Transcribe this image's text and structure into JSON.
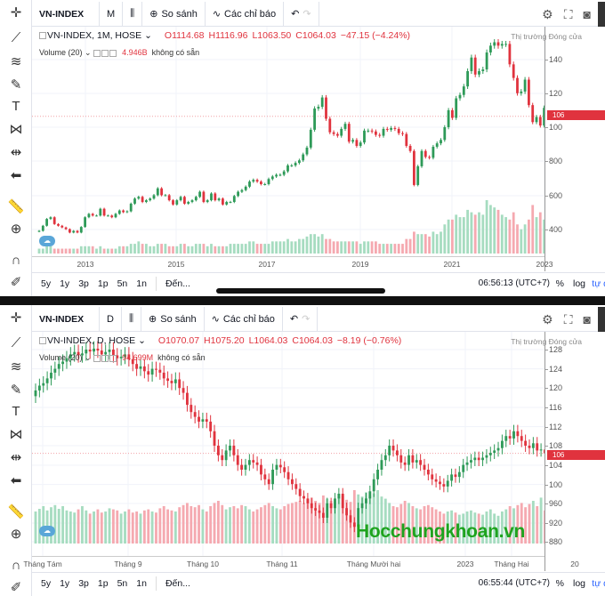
{
  "colors": {
    "up": "#2e9a58",
    "down": "#e0333e",
    "vol_up": "#a6dcc0",
    "vol_down": "#f5a9b0",
    "accent": "#2962ff",
    "watermark": "#1ea31e"
  },
  "toolbar_common": {
    "compare": "So sánh",
    "indicators": "Các chỉ báo",
    "tools": [
      "crosshair-icon",
      "trendline-icon",
      "fib-icon",
      "brush-icon",
      "text-icon",
      "pattern-icon",
      "measure-icon",
      "back-arrow-icon",
      "ruler-icon",
      "zoom-in-icon",
      "magnet-icon",
      "lock-drawing-icon"
    ]
  },
  "panels": [
    {
      "symbol": "VN-INDEX",
      "interval": "M",
      "legend": {
        "title": "VN-INDEX, 1M, HOSE",
        "open": "O1114.68",
        "high": "H1116.96",
        "low": "L1063.50",
        "close": "C1064.03",
        "change": "−47.15 (−4.24%)"
      },
      "volume_legend": {
        "label": "Volume (20)",
        "value": "4.946B",
        "na": "không có sẵn"
      },
      "status": "Thị trường Đóng cửa",
      "price_ticks": [
        "140",
        "120",
        "100",
        "800",
        "600",
        "400"
      ],
      "price_label": "106",
      "time_ticks": [
        "2013",
        "2015",
        "2017",
        "2019",
        "2021",
        "2023"
      ],
      "ranges": [
        "5y",
        "1y",
        "3p",
        "1p",
        "5n",
        "1n"
      ],
      "goto": "Đến...",
      "clock": "06:56:13 (UTC+7)",
      "pct": "%",
      "log": "log",
      "auto": "tự đ"
    },
    {
      "symbol": "VN-INDEX",
      "interval": "D",
      "legend": {
        "title": "VN-INDEX, D, HOSE",
        "open": "O1070.07",
        "high": "H1075.20",
        "low": "L1064.03",
        "close": "C1064.03",
        "change": "−8.19 (−0.76%)"
      },
      "volume_legend": {
        "label": "Volume (20)",
        "value": "94.699M",
        "na": "không có sẵn"
      },
      "status": "Thị trường Đóng cửa",
      "price_ticks": [
        "128",
        "124",
        "120",
        "116",
        "112",
        "108",
        "104",
        "100",
        "960",
        "920",
        "880"
      ],
      "price_label": "106",
      "time_ticks": [
        "Tháng Tám",
        "Tháng 9",
        "Tháng 10",
        "Tháng 11",
        "Tháng Mười hai",
        "2023",
        "Tháng Hai",
        "20"
      ],
      "ranges": [
        "5y",
        "1y",
        "3p",
        "1p",
        "5n",
        "1n"
      ],
      "goto": "Đến...",
      "clock": "06:55:44 (UTC+7)",
      "pct": "%",
      "log": "log",
      "auto": "tự đ"
    }
  ],
  "watermark": "Hocchungkhoan.vn",
  "chart_data": [
    {
      "type": "candlestick",
      "title": "VN-INDEX, 1M, HOSE",
      "x_start": "2012-01",
      "x_interval": "month",
      "ylim": [
        260,
        1550
      ],
      "grid": true,
      "close": [
        390,
        420,
        460,
        470,
        430,
        420,
        410,
        400,
        380,
        390,
        380,
        413,
        470,
        490,
        480,
        480,
        520,
        480,
        480,
        470,
        490,
        510,
        500,
        505,
        550,
        580,
        590,
        560,
        570,
        580,
        600,
        640,
        600,
        600,
        570,
        545,
        570,
        590,
        550,
        560,
        570,
        590,
        620,
        560,
        570,
        610,
        570,
        580,
        545,
        560,
        560,
        595,
        620,
        630,
        650,
        680,
        690,
        680,
        665,
        665,
        695,
        710,
        720,
        720,
        740,
        775,
        775,
        790,
        805,
        840,
        880,
        985,
        1110,
        1120,
        1175,
        1050,
        970,
        960,
        950,
        990,
        1020,
        915,
        925,
        890,
        910,
        980,
        980,
        975,
        955,
        950,
        990,
        985,
        995,
        990,
        965,
        960,
        890,
        860,
        660,
        770,
        860,
        825,
        820,
        885,
        905,
        925,
        1000,
        1100,
        1055,
        1170,
        1190,
        1240,
        1330,
        1410,
        1310,
        1330,
        1340,
        1440,
        1480,
        1500,
        1480,
        1490,
        1490,
        1370,
        1290,
        1200,
        1210,
        1280,
        1130,
        1030,
        1060,
        1010,
        1114,
        1064
      ],
      "volume": [
        2,
        2,
        3,
        3,
        2,
        2,
        2,
        2,
        2,
        2,
        2,
        3,
        3,
        3,
        3,
        2,
        3,
        2,
        2,
        2,
        2,
        3,
        3,
        3,
        4,
        4,
        5,
        4,
        4,
        3,
        3,
        4,
        4,
        4,
        3,
        3,
        3,
        4,
        4,
        3,
        3,
        4,
        4,
        4,
        3,
        4,
        3,
        3,
        3,
        3,
        4,
        4,
        4,
        4,
        4,
        5,
        5,
        4,
        4,
        4,
        4,
        5,
        5,
        5,
        5,
        6,
        5,
        5,
        6,
        6,
        7,
        8,
        8,
        7,
        8,
        6,
        6,
        5,
        5,
        5,
        5,
        5,
        5,
        5,
        4,
        5,
        5,
        5,
        5,
        4,
        4,
        4,
        4,
        4,
        4,
        4,
        6,
        6,
        9,
        8,
        8,
        8,
        7,
        9,
        8,
        9,
        12,
        14,
        14,
        16,
        15,
        15,
        18,
        17,
        16,
        17,
        16,
        22,
        20,
        19,
        18,
        16,
        15,
        14,
        17,
        12,
        10,
        12,
        14,
        20,
        15,
        17,
        14,
        5
      ]
    },
    {
      "type": "candlestick",
      "title": "VN-INDEX, D, HOSE",
      "x_start": "2022-08",
      "x_interval": "trading day",
      "ylim": [
        860,
        1300
      ],
      "grid": true,
      "close": [
        1195,
        1205,
        1210,
        1220,
        1232,
        1240,
        1250,
        1255,
        1262,
        1270,
        1275,
        1268,
        1272,
        1280,
        1276,
        1282,
        1278,
        1270,
        1275,
        1280,
        1268,
        1262,
        1265,
        1270,
        1260,
        1250,
        1240,
        1245,
        1235,
        1228,
        1240,
        1238,
        1232,
        1220,
        1215,
        1210,
        1218,
        1200,
        1190,
        1165,
        1150,
        1140,
        1130,
        1135,
        1130,
        1110,
        1080,
        1060,
        1050,
        1070,
        1080,
        1060,
        1040,
        1030,
        1040,
        1050,
        1045,
        1040,
        1020,
        1010,
        1000,
        1030,
        1040,
        1035,
        1025,
        1010,
        1000,
        990,
        975,
        970,
        960,
        950,
        945,
        940,
        930,
        960,
        950,
        970,
        980,
        950,
        935,
        920,
        911,
        950,
        960,
        970,
        985,
        1010,
        1030,
        1050,
        1060,
        1080,
        1070,
        1060,
        1045,
        1040,
        1060,
        1045,
        1050,
        1040,
        1030,
        1020,
        1010,
        1005,
        1000,
        995,
        1007,
        1020,
        1015,
        1025,
        1040,
        1045,
        1050,
        1055,
        1050,
        1055,
        1060,
        1065,
        1070,
        1075,
        1090,
        1100,
        1095,
        1110,
        1100,
        1090,
        1080,
        1075,
        1085,
        1070,
        1072,
        1064
      ],
      "volume": [
        600,
        650,
        700,
        620,
        680,
        720,
        650,
        700,
        620,
        600,
        580,
        640,
        700,
        620,
        560,
        600,
        640,
        580,
        600,
        660,
        640,
        620,
        560,
        600,
        640,
        580,
        600,
        560,
        620,
        640,
        600,
        580,
        660,
        700,
        640,
        620,
        600,
        680,
        720,
        760,
        700,
        680,
        720,
        640,
        600,
        700,
        760,
        800,
        720,
        640,
        680,
        700,
        660,
        720,
        700,
        640,
        600,
        640,
        680,
        720,
        760,
        700,
        660,
        640,
        700,
        740,
        760,
        780,
        800,
        760,
        820,
        860,
        800,
        760,
        900,
        840,
        800,
        780,
        860,
        900,
        820,
        780,
        1000,
        920,
        880,
        960,
        900,
        940,
        1000,
        880,
        840,
        760,
        700,
        680,
        740,
        800,
        760,
        700,
        660,
        640,
        700,
        720,
        680,
        640,
        600,
        560,
        600,
        620,
        580,
        540,
        560,
        600,
        620,
        580,
        560,
        540,
        600,
        640,
        560,
        520,
        600,
        640,
        700,
        660,
        720,
        760,
        680,
        740,
        800,
        700,
        860,
        620
      ]
    }
  ]
}
